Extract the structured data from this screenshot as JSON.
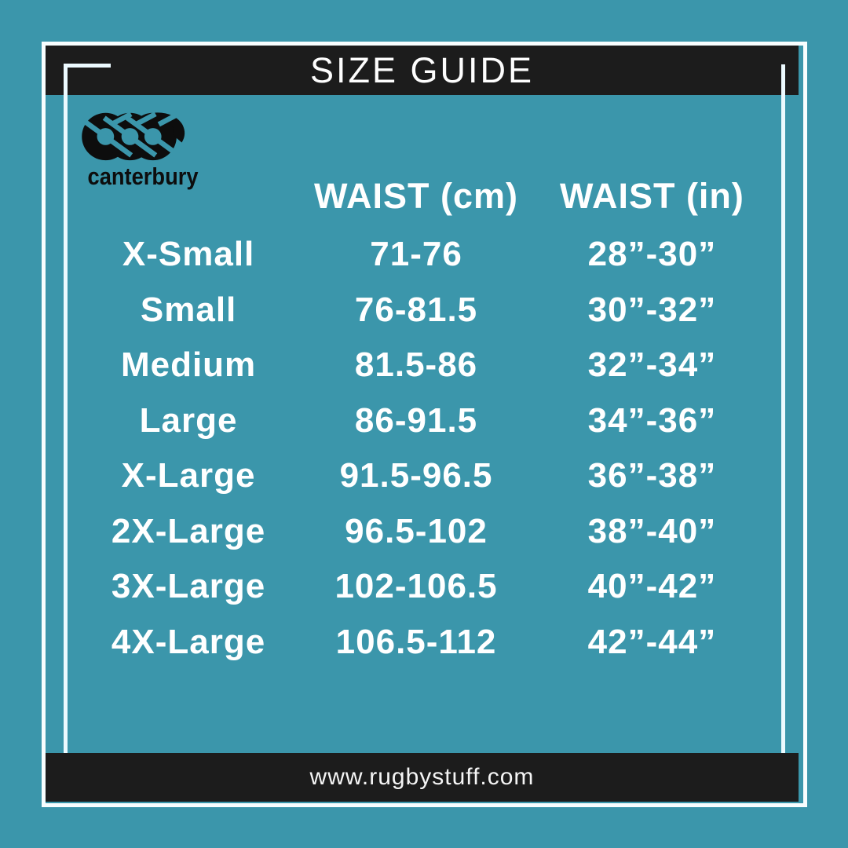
{
  "page": {
    "title": "SIZE GUIDE"
  },
  "brand": {
    "wordmark": "canterbury"
  },
  "footer": {
    "website": "www.rugbystuff.com"
  },
  "colors": {
    "background_teal": "#3b96ab",
    "bar_black": "#1c1c1c",
    "text_white": "#ffffff",
    "frame_white": "#f8feff",
    "accent_line": "#ecfaff",
    "logo_black": "#0d0d0d"
  },
  "chart_data": {
    "type": "table",
    "title": "SIZE GUIDE",
    "columns": [
      "",
      "WAIST (cm)",
      "WAIST (in)"
    ],
    "rows": [
      [
        "X-Small",
        "71-76",
        "28”-30”"
      ],
      [
        "Small",
        "76-81.5",
        "30”-32”"
      ],
      [
        "Medium",
        "81.5-86",
        "32”-34”"
      ],
      [
        "Large",
        "86-91.5",
        "34”-36”"
      ],
      [
        "X-Large",
        "91.5-96.5",
        "36”-38”"
      ],
      [
        "2X-Large",
        "96.5-102",
        "38”-40”"
      ],
      [
        "3X-Large",
        "102-106.5",
        "40”-42”"
      ],
      [
        "4X-Large",
        "106.5-112",
        "42”-44”"
      ]
    ]
  }
}
